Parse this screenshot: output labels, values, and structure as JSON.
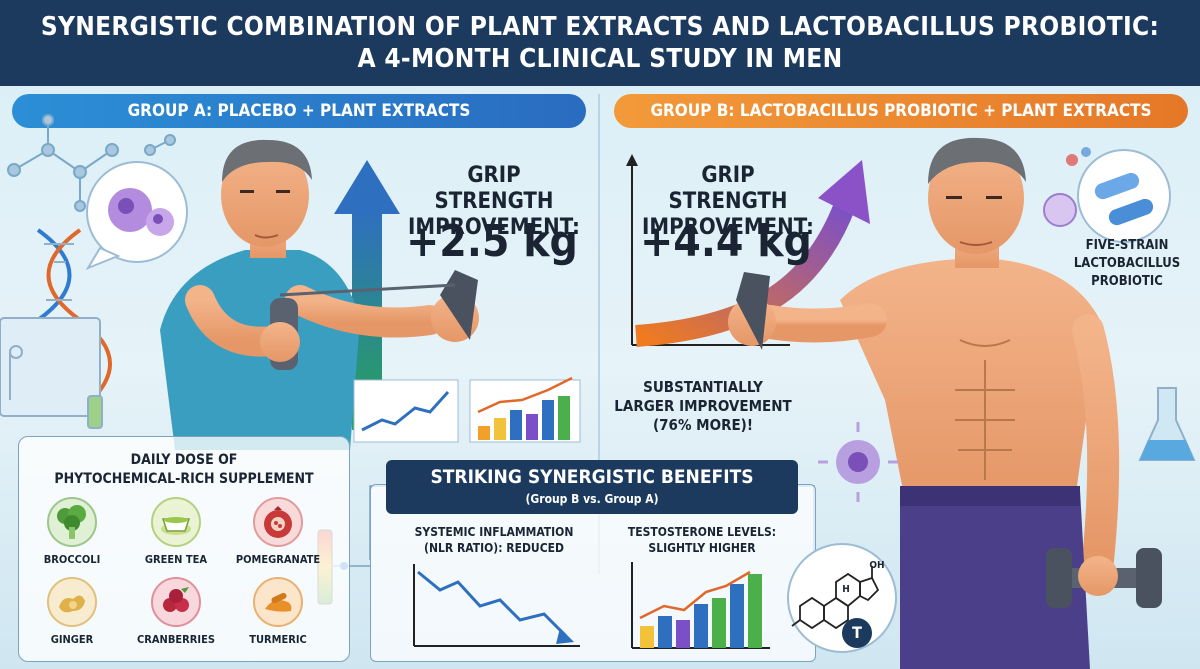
{
  "header": {
    "title_line1": "SYNERGISTIC COMBINATION OF PLANT EXTRACTS AND LACTOBACILLUS PROBIOTIC:",
    "title_line2": "A 4-MONTH CLINICAL STUDY IN MEN"
  },
  "group_a": {
    "label": "GROUP A: PLACEBO + PLANT EXTRACTS",
    "grip_label_line1": "GRIP STRENGTH",
    "grip_label_line2": "IMPROVEMENT:",
    "grip_value": "+2.5 kg",
    "color": "#2a78c8"
  },
  "group_b": {
    "label": "GROUP B: LACTOBACILLUS PROBIOTIC + PLANT EXTRACTS",
    "grip_label_line1": "GRIP STRENGTH",
    "grip_label_line2": "IMPROVEMENT:",
    "grip_value": "+4.4 kg",
    "color": "#ec8430",
    "note_line1": "SUBSTANTIALLY",
    "note_line2": "LARGER IMPROVEMENT",
    "note_line3": "(76% MORE)!",
    "probiotic_line1": "FIVE-STRAIN",
    "probiotic_line2": "LACTOBACILLUS",
    "probiotic_line3": "PROBIOTIC"
  },
  "supplement": {
    "title_line1": "DAILY DOSE OF",
    "title_line2": "PHYTOCHEMICAL-RICH SUPPLEMENT",
    "foods": [
      {
        "label": "BROCCOLI",
        "icon": "broccoli-icon",
        "color": "#4f9a3a"
      },
      {
        "label": "GREEN TEA",
        "icon": "green-tea-icon",
        "color": "#9cc64a"
      },
      {
        "label": "POMEGRANATE",
        "icon": "pomegranate-icon",
        "color": "#c83a3a"
      },
      {
        "label": "GINGER",
        "icon": "ginger-icon",
        "color": "#e0b04a"
      },
      {
        "label": "CRANBERRIES",
        "icon": "cranberries-icon",
        "color": "#b8283c"
      },
      {
        "label": "TURMERIC",
        "icon": "turmeric-icon",
        "color": "#e8902a"
      }
    ]
  },
  "benefits": {
    "title": "STRIKING SYNERGISTIC BENEFITS",
    "subtitle": "(Group B vs. Group A)",
    "inflammation_line1": "SYSTEMIC INFLAMMATION",
    "inflammation_line2": "(NLR RATIO): REDUCED",
    "testosterone_line1": "TESTOSTERONE LEVELS:",
    "testosterone_line2": "SLIGHTLY HIGHER",
    "testosterone_badge": "T",
    "oh_label": "OH",
    "h_label": "H"
  }
}
